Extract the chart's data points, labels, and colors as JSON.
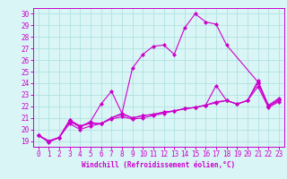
{
  "x": [
    0,
    1,
    2,
    3,
    4,
    5,
    6,
    7,
    8,
    9,
    10,
    11,
    12,
    13,
    14,
    15,
    16,
    17,
    18,
    19,
    20,
    21,
    22,
    23
  ],
  "line1": [
    19.5,
    18.9,
    19.3,
    20.7,
    20.2,
    20.7,
    22.2,
    23.3,
    21.4,
    25.3,
    26.5,
    27.2,
    27.3,
    26.5,
    28.8,
    30.0,
    29.3,
    29.1,
    27.3,
    null,
    null,
    24.1,
    22.0,
    22.5
  ],
  "line2": [
    19.5,
    19.0,
    19.3,
    20.8,
    20.3,
    20.6,
    20.5,
    21.0,
    21.4,
    21.0,
    21.2,
    21.3,
    21.5,
    21.6,
    21.8,
    21.9,
    22.1,
    23.8,
    22.5,
    22.2,
    22.5,
    24.2,
    22.1,
    22.7
  ],
  "line3": [
    19.5,
    19.0,
    19.3,
    20.8,
    20.3,
    20.5,
    20.5,
    21.0,
    21.3,
    21.0,
    21.2,
    21.3,
    21.5,
    21.6,
    21.8,
    21.9,
    22.1,
    22.4,
    22.5,
    22.2,
    22.5,
    24.0,
    22.0,
    22.6
  ],
  "line4": [
    19.5,
    19.0,
    19.3,
    20.5,
    20.0,
    20.3,
    20.5,
    20.9,
    21.1,
    20.9,
    21.0,
    21.2,
    21.4,
    21.6,
    21.8,
    21.9,
    22.1,
    22.3,
    22.5,
    22.2,
    22.5,
    23.7,
    21.9,
    22.4
  ],
  "line_color": "#cc00cc",
  "bg_color": "#d9f5f5",
  "grid_color": "#aadddd",
  "xlabel": "Windchill (Refroidissement éolien,°C)",
  "xlim": [
    -0.5,
    23.5
  ],
  "ylim": [
    18.5,
    30.5
  ],
  "xticks": [
    0,
    1,
    2,
    3,
    4,
    5,
    6,
    7,
    8,
    9,
    10,
    11,
    12,
    13,
    14,
    15,
    16,
    17,
    18,
    19,
    20,
    21,
    22,
    23
  ],
  "yticks": [
    19,
    20,
    21,
    22,
    23,
    24,
    25,
    26,
    27,
    28,
    29,
    30
  ],
  "marker": "D",
  "markersize": 2.0,
  "linewidth": 0.8,
  "tick_fontsize": 5.5,
  "xlabel_fontsize": 5.5
}
